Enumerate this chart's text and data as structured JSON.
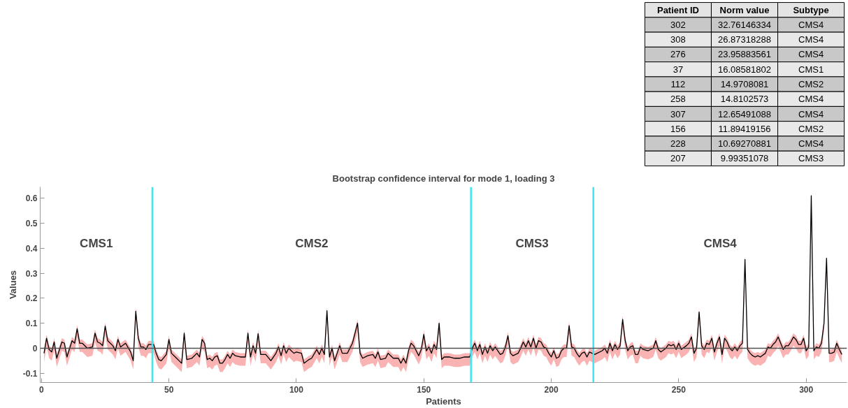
{
  "chart_data": [
    {
      "type": "line",
      "title": "Bootstrap confidence interval for mode 1, loading 3",
      "xlabel": "Patients",
      "ylabel": "Values",
      "xlim": [
        -0.5,
        316
      ],
      "ylim": [
        -0.137,
        0.645
      ],
      "xticks": [
        0,
        50,
        100,
        150,
        200,
        250,
        300
      ],
      "yticks": [
        -0.1,
        0,
        0.1,
        0.2,
        0.3,
        0.4,
        0.5,
        0.6
      ],
      "x": [
        1,
        2,
        3,
        4,
        5,
        6,
        8,
        9,
        10,
        12,
        13,
        14,
        15,
        16,
        18,
        20,
        21,
        22,
        23,
        24,
        25,
        26,
        28,
        29,
        30,
        31,
        33,
        35,
        36,
        37,
        38,
        39,
        40,
        41,
        42,
        44,
        45,
        46,
        47,
        49,
        50,
        51,
        53,
        54,
        55,
        56,
        57,
        59,
        61,
        62,
        63,
        64,
        65,
        66,
        67,
        68,
        69,
        70,
        71,
        72,
        73,
        74,
        75,
        76,
        78,
        80,
        81,
        82,
        83,
        84,
        85,
        86,
        88,
        90,
        92,
        93,
        94,
        95,
        96,
        97,
        99,
        100,
        102,
        103,
        105,
        106,
        108,
        109,
        110,
        111,
        112,
        113,
        114,
        115,
        116,
        117,
        118,
        120,
        122,
        124,
        125,
        126,
        128,
        130,
        131,
        132,
        133,
        135,
        136,
        138,
        140,
        141,
        142,
        143,
        144,
        145,
        146,
        147,
        148,
        149,
        150,
        151,
        152,
        153,
        154,
        155,
        156,
        157,
        158,
        160,
        162,
        164,
        166,
        168,
        169,
        170,
        171,
        172,
        173,
        174,
        175,
        176,
        177,
        178,
        180,
        181,
        182,
        183,
        184,
        185,
        187,
        188,
        189,
        190,
        191,
        192,
        193,
        194,
        195,
        196,
        197,
        198,
        199,
        200,
        201,
        202,
        203,
        204,
        205,
        206,
        207,
        208,
        209,
        210,
        211,
        212,
        213,
        214,
        215,
        217,
        218,
        220,
        221,
        222,
        223,
        224,
        225,
        226,
        227,
        228,
        229,
        230,
        231,
        232,
        233,
        234,
        235,
        236,
        238,
        240,
        241,
        242,
        243,
        245,
        246,
        247,
        248,
        249,
        250,
        251,
        253,
        254,
        255,
        256,
        257,
        258,
        259,
        260,
        261,
        262,
        263,
        264,
        265,
        266,
        267,
        268,
        269,
        270,
        271,
        272,
        273,
        274,
        275,
        276,
        277,
        278,
        279,
        280,
        281,
        282,
        284,
        285,
        286,
        287,
        288,
        289,
        290,
        291,
        292,
        293,
        294,
        295,
        296,
        297,
        298,
        299,
        300,
        301,
        302,
        303,
        304,
        305,
        306,
        307,
        308,
        309,
        310,
        311,
        312,
        313,
        314
      ],
      "series": [
        {
          "color": "#000000",
          "values": [
            -0.02,
            0.04,
            -0.005,
            -0.015,
            0.025,
            -0.04,
            0.025,
            0.02,
            -0.035,
            0.03,
            0.02,
            0.078,
            0.02,
            0.02,
            0,
            0.005,
            0.06,
            0.025,
            0.02,
            0.01,
            0.088,
            0.03,
            0.01,
            -0.01,
            0.035,
            0.005,
            0.02,
            -0.015,
            -0.05,
            0.148,
            0.04,
            0.005,
            0.005,
            -0.005,
            0.015,
            0.015,
            -0.02,
            -0.045,
            -0.05,
            -0.025,
            0.035,
            -0.02,
            -0.04,
            -0.05,
            -0.06,
            0.06,
            -0.045,
            -0.04,
            -0.02,
            -0.035,
            0.035,
            0.02,
            -0.045,
            -0.04,
            -0.05,
            -0.035,
            -0.03,
            -0.06,
            -0.06,
            -0.045,
            -0.025,
            -0.04,
            -0.02,
            -0.03,
            -0.035,
            -0.035,
            0.06,
            -0.035,
            0.01,
            -0.02,
            0.058,
            -0.025,
            -0.025,
            -0.05,
            -0.02,
            0.005,
            -0.03,
            0.01,
            -0.02,
            0,
            -0.02,
            -0.015,
            -0.02,
            -0.06,
            -0.045,
            -0.04,
            -0.005,
            -0.025,
            0,
            -0.025,
            0.15,
            -0.035,
            0,
            -0.05,
            -0.02,
            0.01,
            -0.02,
            -0.02,
            0.02,
            0.1,
            -0.02,
            -0.04,
            -0.03,
            -0.025,
            -0.04,
            -0.015,
            -0.045,
            -0.04,
            -0.02,
            -0.04,
            -0.04,
            -0.06,
            -0.04,
            -0.06,
            -0.01,
            0.02,
            0.01,
            -0.01,
            -0.03,
            -0.005,
            0.055,
            -0.01,
            0.005,
            -0.02,
            0.015,
            -0.005,
            0.1,
            -0.045,
            -0.035,
            -0.035,
            -0.04,
            -0.04,
            -0.035,
            -0.035,
            0,
            0.02,
            -0.01,
            0.015,
            -0.025,
            0.005,
            -0.02,
            0.01,
            -0.01,
            0.005,
            -0.025,
            -0.02,
            0.005,
            0.05,
            -0.02,
            -0.03,
            -0.02,
            0,
            0.025,
            0.005,
            0.03,
            0.005,
            0.04,
            0,
            0.03,
            0.025,
            0.005,
            0,
            -0.02,
            -0.035,
            -0.01,
            -0.04,
            -0.035,
            -0.01,
            0,
            0,
            0.09,
            0.005,
            0,
            -0.02,
            -0.035,
            -0.02,
            -0.015,
            -0.035,
            -0.015,
            -0.025,
            -0.02,
            -0.01,
            0,
            -0.02,
            0.02,
            -0.01,
            0.015,
            -0.005,
            0.01,
            0.115,
            0.03,
            -0.01,
            0.005,
            0.01,
            -0.025,
            -0.025,
            0.005,
            -0.005,
            -0.01,
            0,
            0.03,
            -0.005,
            -0.015,
            0,
            0.015,
            0.01,
            0.015,
            -0.005,
            0.02,
            -0.005,
            0.01,
            0.02,
            0.045,
            -0.02,
            0,
            0.145,
            0.01,
            -0.005,
            0.02,
            0.015,
            0.04,
            -0.015,
            0.02,
            0.045,
            -0.025,
            0.04,
            0.025,
            0,
            -0.01,
            0.005,
            -0.01,
            0.01,
            0.02,
            0.355,
            -0.005,
            -0.02,
            -0.03,
            -0.035,
            -0.03,
            -0.035,
            -0.02,
            0.005,
            0,
            0.015,
            0.025,
            0.045,
            0.02,
            -0.005,
            0.01,
            0.01,
            0.025,
            0.045,
            0.035,
            0.015,
            0.015,
            0.04,
            -0.01,
            0.005,
            0.61,
            -0.01,
            0.005,
            0,
            0.02,
            0.1,
            0.36,
            -0.02,
            -0.02,
            -0.015,
            0.02,
            -0.005,
            -0.025
          ],
          "upper": [
            -0.005,
            0.055,
            0.01,
            0,
            0.04,
            -0.025,
            0.04,
            0.035,
            -0.02,
            0.045,
            0.035,
            0.093,
            0.035,
            0.035,
            0.015,
            0.02,
            0.075,
            0.04,
            0.035,
            0.025,
            0.103,
            0.045,
            0.025,
            0.005,
            0.05,
            0.02,
            0.035,
            0,
            -0.035,
            0.163,
            0.055,
            0.02,
            0.02,
            0.01,
            0.03,
            0.03,
            -0.005,
            -0.03,
            -0.035,
            -0.01,
            0.05,
            -0.005,
            -0.025,
            -0.035,
            -0.045,
            0.075,
            -0.03,
            -0.025,
            -0.005,
            -0.02,
            0.05,
            0.035,
            -0.03,
            -0.025,
            -0.035,
            -0.02,
            -0.015,
            -0.045,
            -0.045,
            -0.03,
            -0.01,
            -0.025,
            -0.005,
            -0.015,
            -0.02,
            -0.02,
            0.075,
            -0.02,
            0.025,
            -0.005,
            0.073,
            -0.01,
            -0.01,
            -0.035,
            -0.005,
            0.02,
            -0.015,
            0.025,
            -0.005,
            0.015,
            -0.005,
            0,
            -0.005,
            -0.045,
            -0.03,
            -0.025,
            0.01,
            -0.01,
            0.015,
            -0.01,
            0.165,
            -0.02,
            0.015,
            -0.035,
            -0.005,
            0.025,
            -0.005,
            -0.005,
            0.035,
            0.115,
            -0.005,
            -0.025,
            -0.015,
            -0.01,
            -0.025,
            0,
            -0.03,
            -0.025,
            -0.005,
            -0.025,
            -0.025,
            -0.045,
            -0.025,
            -0.045,
            0.005,
            0.035,
            0.025,
            0.005,
            -0.015,
            0.01,
            0.07,
            0.005,
            0.02,
            -0.005,
            0.03,
            0.01,
            0.115,
            -0.03,
            -0.02,
            -0.02,
            -0.025,
            -0.025,
            -0.02,
            -0.02,
            0.015,
            0.035,
            0.005,
            0.03,
            -0.01,
            0.02,
            -0.005,
            0.025,
            0.005,
            0.02,
            -0.01,
            -0.005,
            0.02,
            0.065,
            -0.005,
            -0.015,
            -0.005,
            0.015,
            0.04,
            0.02,
            0.045,
            0.02,
            0.055,
            0.015,
            0.045,
            0.04,
            0.02,
            0.015,
            -0.005,
            -0.02,
            0.005,
            -0.025,
            -0.02,
            0.005,
            0.015,
            0.015,
            0.105,
            0.02,
            0.015,
            -0.005,
            -0.02,
            -0.005,
            0,
            -0.02,
            0,
            -0.01,
            -0.005,
            0.005,
            0.015,
            -0.005,
            0.035,
            0.005,
            0.03,
            0.01,
            0.025,
            0.13,
            0.045,
            0.005,
            0.02,
            0.025,
            -0.01,
            -0.01,
            0.02,
            0.01,
            0.005,
            0.015,
            0.045,
            0.01,
            0,
            0.015,
            0.03,
            0.025,
            0.03,
            0.01,
            0.035,
            0.01,
            0.025,
            0.035,
            0.06,
            -0.005,
            0.015,
            0.16,
            0.025,
            0.01,
            0.035,
            0.03,
            0.055,
            0,
            0.035,
            0.06,
            -0.01,
            0.055,
            0.04,
            0.015,
            0.005,
            0.02,
            0.005,
            0.025,
            0.035,
            0.37,
            0.01,
            -0.005,
            -0.015,
            -0.02,
            -0.015,
            -0.02,
            -0.005,
            0.02,
            0.015,
            0.03,
            0.04,
            0.06,
            0.035,
            0.01,
            0.025,
            0.025,
            0.04,
            0.06,
            0.05,
            0.03,
            0.03,
            0.055,
            0.005,
            0.02,
            0.625,
            0.005,
            0.02,
            0.015,
            0.035,
            0.115,
            0.375,
            -0.005,
            -0.005,
            0,
            0.035,
            0.01,
            -0.01
          ],
          "lower": [
            -0.055,
            0.005,
            -0.04,
            -0.05,
            -0.01,
            -0.075,
            -0.01,
            -0.015,
            -0.07,
            -0.005,
            -0.015,
            0.043,
            -0.015,
            -0.015,
            -0.035,
            -0.03,
            0.025,
            -0.01,
            -0.015,
            -0.025,
            0.053,
            -0.005,
            -0.025,
            -0.045,
            0,
            -0.03,
            -0.015,
            -0.05,
            -0.085,
            0.113,
            0.005,
            -0.03,
            -0.03,
            -0.04,
            -0.02,
            -0.02,
            -0.055,
            -0.08,
            -0.085,
            -0.06,
            0,
            -0.055,
            -0.075,
            -0.085,
            -0.095,
            0.025,
            -0.08,
            -0.075,
            -0.055,
            -0.07,
            0,
            -0.015,
            -0.08,
            -0.075,
            -0.085,
            -0.07,
            -0.065,
            -0.095,
            -0.095,
            -0.08,
            -0.06,
            -0.075,
            -0.055,
            -0.065,
            -0.07,
            -0.07,
            0.025,
            -0.07,
            -0.025,
            -0.055,
            0.023,
            -0.06,
            -0.06,
            -0.085,
            -0.055,
            -0.03,
            -0.065,
            -0.025,
            -0.055,
            -0.035,
            -0.055,
            -0.05,
            -0.055,
            -0.095,
            -0.08,
            -0.075,
            -0.04,
            -0.06,
            -0.035,
            -0.06,
            0.115,
            -0.07,
            -0.035,
            -0.085,
            -0.055,
            -0.025,
            -0.055,
            -0.055,
            -0.015,
            0.065,
            -0.055,
            -0.075,
            -0.065,
            -0.06,
            -0.075,
            -0.05,
            -0.08,
            -0.075,
            -0.055,
            -0.075,
            -0.075,
            -0.095,
            -0.075,
            -0.095,
            -0.045,
            -0.015,
            -0.025,
            -0.045,
            -0.065,
            -0.04,
            0.02,
            -0.045,
            -0.03,
            -0.055,
            -0.02,
            -0.04,
            0.065,
            -0.08,
            -0.07,
            -0.07,
            -0.075,
            -0.075,
            -0.07,
            -0.07,
            -0.035,
            -0.015,
            -0.045,
            -0.02,
            -0.06,
            -0.03,
            -0.055,
            -0.025,
            -0.045,
            -0.03,
            -0.06,
            -0.055,
            -0.03,
            0.015,
            -0.055,
            -0.065,
            -0.055,
            -0.035,
            -0.01,
            -0.03,
            -0.005,
            -0.03,
            0.005,
            -0.035,
            -0.005,
            -0.01,
            -0.03,
            -0.035,
            -0.055,
            -0.07,
            -0.045,
            -0.075,
            -0.07,
            -0.045,
            -0.035,
            -0.035,
            0.055,
            -0.03,
            -0.035,
            -0.055,
            -0.07,
            -0.055,
            -0.05,
            -0.07,
            -0.05,
            -0.06,
            -0.055,
            -0.045,
            -0.035,
            -0.055,
            -0.015,
            -0.045,
            -0.02,
            -0.04,
            -0.025,
            0.08,
            -0.005,
            -0.045,
            -0.03,
            -0.025,
            -0.06,
            -0.06,
            -0.03,
            -0.04,
            -0.045,
            -0.035,
            -0.005,
            -0.04,
            -0.05,
            -0.035,
            -0.02,
            -0.025,
            -0.02,
            -0.04,
            -0.015,
            -0.04,
            -0.025,
            -0.015,
            0.01,
            -0.055,
            -0.035,
            0.11,
            -0.025,
            -0.04,
            -0.015,
            -0.02,
            0.005,
            -0.05,
            -0.015,
            0.01,
            -0.06,
            0.005,
            -0.01,
            -0.035,
            -0.045,
            -0.03,
            -0.045,
            -0.025,
            -0.015,
            0.32,
            -0.04,
            -0.055,
            -0.065,
            -0.07,
            -0.065,
            -0.07,
            -0.055,
            -0.03,
            -0.035,
            -0.02,
            -0.01,
            0.01,
            -0.015,
            -0.04,
            -0.025,
            -0.025,
            -0.01,
            0.01,
            0,
            -0.02,
            -0.02,
            0.005,
            -0.045,
            -0.03,
            0.575,
            -0.045,
            -0.03,
            -0.035,
            -0.015,
            0.065,
            0.325,
            -0.055,
            -0.055,
            -0.05,
            -0.015,
            -0.04,
            -0.06
          ]
        }
      ],
      "ref_lines": [
        {
          "axis": "x",
          "value": 43.5,
          "color": "#3ee8f0"
        },
        {
          "axis": "x",
          "value": 168.5,
          "color": "#3ee8f0"
        },
        {
          "axis": "x",
          "value": 216.5,
          "color": "#3ee8f0"
        },
        {
          "axis": "y",
          "value": 0,
          "color": "#505050"
        }
      ],
      "annotations": [
        "CMS1",
        "CMS2",
        "CMS3",
        "CMS4"
      ]
    },
    {
      "type": "other",
      "categories": [
        "Patient ID",
        "Norm value",
        "Subtype"
      ],
      "cell_labels": [
        [
          "302",
          "32.76146334",
          "CMS4"
        ],
        [
          "308",
          "26.87318288",
          "CMS4"
        ],
        [
          "276",
          "23.95883561",
          "CMS4"
        ],
        [
          "37",
          "16.08581802",
          "CMS1"
        ],
        [
          "112",
          "14.9708081",
          "CMS2"
        ],
        [
          "258",
          "14.8102573",
          "CMS4"
        ],
        [
          "307",
          "12.65491088",
          "CMS4"
        ],
        [
          "156",
          "11.89419156",
          "CMS2"
        ],
        [
          "228",
          "10.69270881",
          "CMS4"
        ],
        [
          "207",
          "9.99351078",
          "CMS3"
        ]
      ]
    }
  ]
}
